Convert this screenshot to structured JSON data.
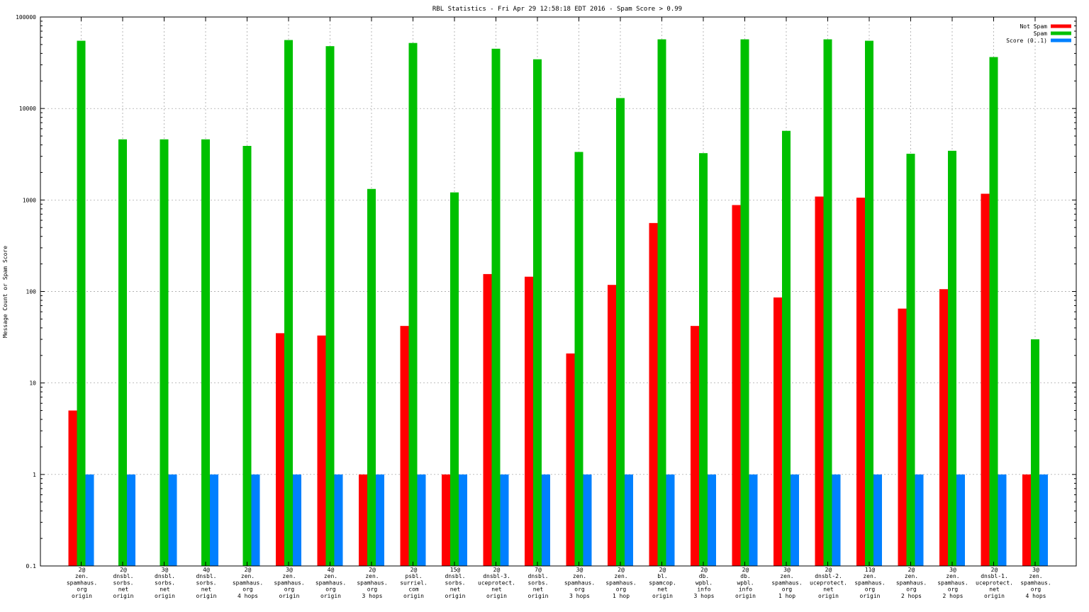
{
  "chart_data": {
    "type": "bar",
    "title": "RBL Statistics - Fri Apr 29 12:58:18 EDT 2016 - Spam Score > 0.99",
    "xlabel": "",
    "ylabel": "Message Count or Spam Score",
    "yscale": "log",
    "ylim": [
      0.1,
      100000
    ],
    "yticks": [
      "0.1",
      "1",
      "10",
      "100",
      "1000",
      "10000",
      "100000"
    ],
    "grid": true,
    "legend_position": "top-right",
    "categories": [
      [
        "2@",
        "zen.",
        "spamhaus.",
        "org",
        "origin"
      ],
      [
        "2@",
        "dnsbl.",
        "sorbs.",
        "net",
        "origin"
      ],
      [
        "3@",
        "dnsbl.",
        "sorbs.",
        "net",
        "origin"
      ],
      [
        "4@",
        "dnsbl.",
        "sorbs.",
        "net",
        "origin"
      ],
      [
        "2@",
        "zen.",
        "spamhaus.",
        "org",
        "4 hops"
      ],
      [
        "3@",
        "zen.",
        "spamhaus.",
        "org",
        "origin"
      ],
      [
        "4@",
        "zen.",
        "spamhaus.",
        "org",
        "origin"
      ],
      [
        "2@",
        "zen.",
        "spamhaus.",
        "org",
        "3 hops"
      ],
      [
        "2@",
        "psbl.",
        "surriel.",
        "com",
        "origin"
      ],
      [
        "15@",
        "dnsbl.",
        "sorbs.",
        "net",
        "origin"
      ],
      [
        "2@",
        "dnsbl-3.",
        "uceprotect.",
        "net",
        "origin"
      ],
      [
        "7@",
        "dnsbl.",
        "sorbs.",
        "net",
        "origin"
      ],
      [
        "3@",
        "zen.",
        "spamhaus.",
        "org",
        "3 hops"
      ],
      [
        "2@",
        "zen.",
        "spamhaus.",
        "org",
        "1 hop"
      ],
      [
        "2@",
        "bl.",
        "spamcop.",
        "net",
        "origin"
      ],
      [
        "2@",
        "db.",
        "wpbl.",
        "info",
        "3 hops"
      ],
      [
        "2@",
        "db.",
        "wpbl.",
        "info",
        "origin"
      ],
      [
        "3@",
        "zen.",
        "spamhaus.",
        "org",
        "1 hop"
      ],
      [
        "2@",
        "dnsbl-2.",
        "uceprotect.",
        "net",
        "origin"
      ],
      [
        "11@",
        "zen.",
        "spamhaus.",
        "org",
        "origin"
      ],
      [
        "2@",
        "zen.",
        "spamhaus.",
        "org",
        "2 hops"
      ],
      [
        "3@",
        "zen.",
        "spamhaus.",
        "org",
        "2 hops"
      ],
      [
        "2@",
        "dnsbl-1.",
        "uceprotect.",
        "net",
        "origin"
      ],
      [
        "3@",
        "zen.",
        "spamhaus.",
        "org",
        "4 hops"
      ]
    ],
    "series": [
      {
        "name": "Not Spam",
        "color": "#ff0000",
        "values": [
          5,
          null,
          null,
          null,
          null,
          35,
          33,
          1,
          42,
          1,
          155,
          145,
          21,
          118,
          560,
          42,
          880,
          86,
          1090,
          1060,
          65,
          106,
          1170,
          1
        ]
      },
      {
        "name": "Spam",
        "color": "#00c000",
        "values": [
          55000,
          4600,
          4600,
          4600,
          3900,
          56000,
          48000,
          1320,
          52000,
          1210,
          45000,
          34500,
          3350,
          13000,
          57000,
          3250,
          57000,
          5700,
          57000,
          55000,
          3200,
          3450,
          36500,
          30
        ]
      },
      {
        "name": "Score (0..1)",
        "color": "#0080ff",
        "values": [
          1,
          1,
          1,
          1,
          1,
          1,
          1,
          1,
          1,
          1,
          1,
          1,
          1,
          1,
          1,
          1,
          1,
          1,
          1,
          1,
          1,
          1,
          1,
          1
        ]
      }
    ]
  }
}
